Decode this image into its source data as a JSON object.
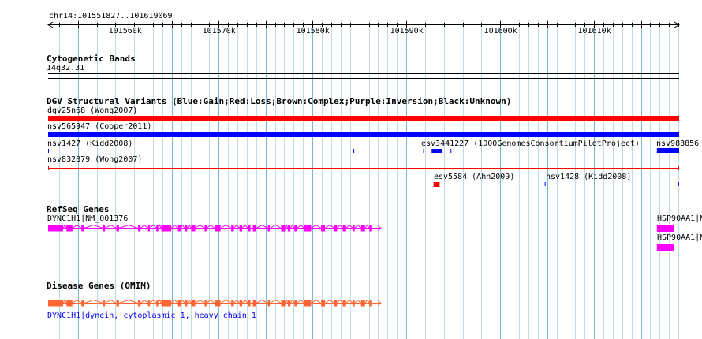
{
  "ruler": {
    "locus": "chr14:101551827..101619069",
    "start": 101551827,
    "end": 101619069,
    "ticks": [
      {
        "pos": 101560000,
        "label": "101560k"
      },
      {
        "pos": 101570000,
        "label": "101570k"
      },
      {
        "pos": 101580000,
        "label": "101580k"
      },
      {
        "pos": 101590000,
        "label": "101590k"
      },
      {
        "pos": 101600000,
        "label": "101600k"
      },
      {
        "pos": 101610000,
        "label": "101610k"
      }
    ]
  },
  "tracks": {
    "cytoband": {
      "title": "Cytogenetic Bands",
      "band": "14q32.31"
    },
    "dgv": {
      "title": "DGV Structural Variants (Blue:Gain;Red:Loss;Brown:Complex;Purple:Inversion;Black:Unknown)",
      "features": [
        {
          "id": "dgv25n68",
          "label": "dgv25n68 (Wong2007)",
          "color": "#ff0000",
          "start": 101551827,
          "end": 101619069,
          "style": "thick"
        },
        {
          "id": "nsv565947",
          "label": "nsv565947 (Cooper2011)",
          "color": "#0000ff",
          "start": 101551827,
          "end": 101619069,
          "style": "thick"
        },
        {
          "id": "nsv1427",
          "label": "nsv1427 (Kidd2008)",
          "color": "#0000ff",
          "start": 101551827,
          "end": 101584450,
          "style": "thin"
        },
        {
          "id": "esv3441227",
          "label": "esv3441227 (1000GenomesConsortiumPilotProject)",
          "color": "#0000ff",
          "start": 101591800,
          "end": 101594800,
          "style": "gapped"
        },
        {
          "id": "nsv983856",
          "label": "nsv983856",
          "color": "#0000ff",
          "start": 101616700,
          "end": 101619069,
          "style": "thick"
        },
        {
          "id": "nsv832879",
          "label": "nsv832879 (Wong2007)",
          "color": "#ff0000",
          "start": 101551827,
          "end": 101619069,
          "style": "thin"
        },
        {
          "id": "esv5584",
          "label": "esv5584 (Ahn2009)",
          "color": "#ff0000",
          "start": 101592900,
          "end": 101593550,
          "style": "thick"
        },
        {
          "id": "nsv1428",
          "label": "nsv1428 (Kidd2008)",
          "color": "#0000ff",
          "start": 101604750,
          "end": 101619069,
          "style": "thin"
        }
      ]
    },
    "refseq": {
      "title": "RefSeq Genes",
      "genes": [
        {
          "label": "DYNC1H1|NM_001376",
          "color": "#ff00ff",
          "start": 101551827,
          "end": 101587300,
          "strand": "+"
        },
        {
          "label": "HSP90AA1|N",
          "color": "#ff00ff",
          "start": 101616700,
          "end": 101619069,
          "strand": "-"
        },
        {
          "label": "HSP90AA1|N",
          "color": "#ff00ff",
          "start": 101616700,
          "end": 101619069,
          "strand": "-"
        }
      ]
    },
    "omim": {
      "title": "Disease Genes (OMIM)",
      "genes": [
        {
          "label": "DYNC1H1|dynein, cytoplasmic 1, heavy chain 1",
          "color": "#ff6633",
          "start": 101551827,
          "end": 101587300,
          "strand": "+"
        }
      ]
    }
  }
}
